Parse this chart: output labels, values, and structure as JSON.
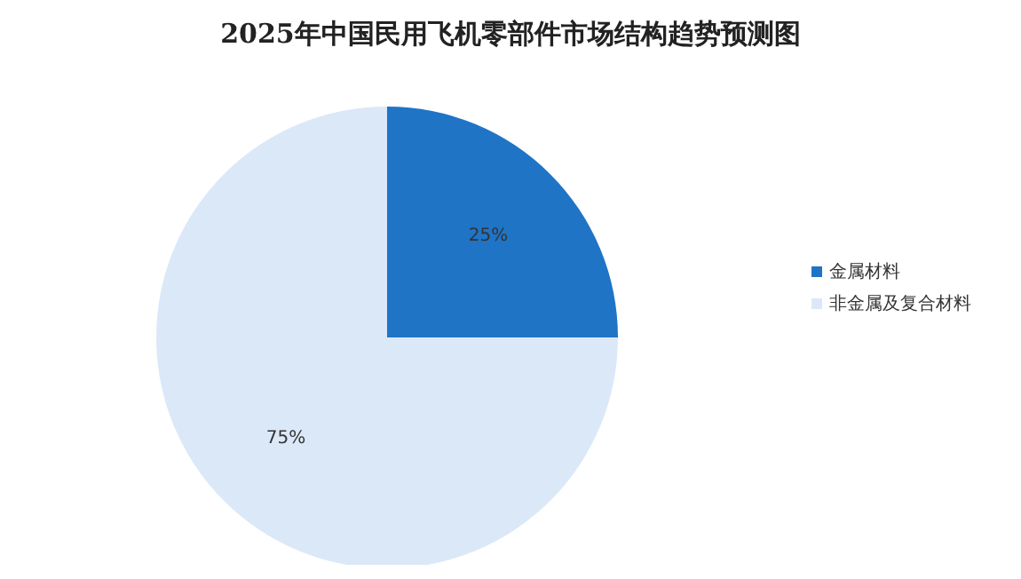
{
  "chart_data": {
    "type": "pie",
    "title": "2025年中国民用飞机零部件市场结构趋势预测图",
    "categories": [
      "金属材料",
      "非金属及复合材料"
    ],
    "values": [
      25,
      75
    ],
    "colors": [
      "#1f74c6",
      "#dbe8f8"
    ],
    "value_labels": [
      "25%",
      "75%"
    ],
    "legend": "right"
  }
}
